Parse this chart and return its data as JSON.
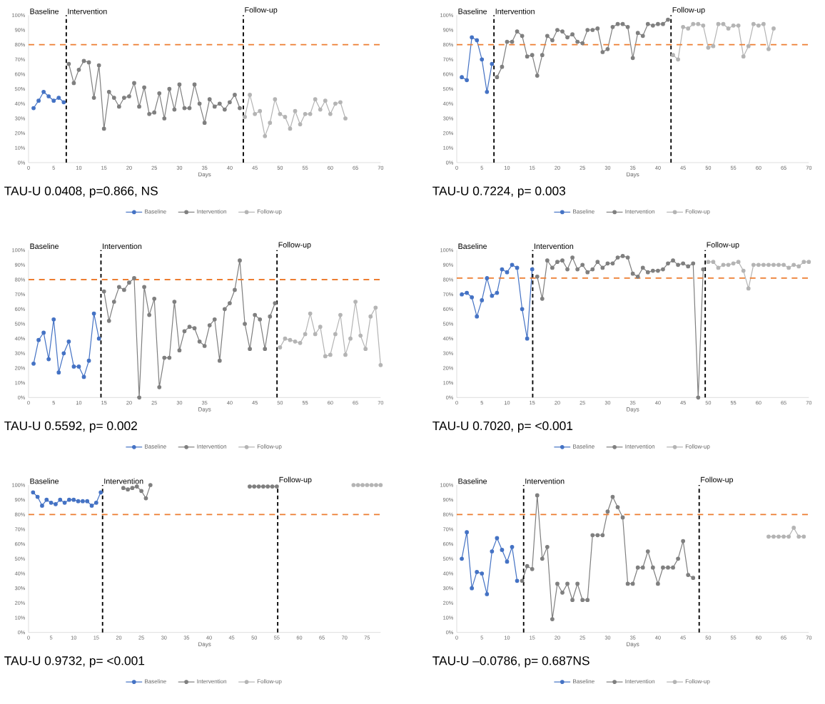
{
  "chart_data": [
    {
      "type": "line",
      "xlabel": "Days",
      "marker": "circle",
      "legend": "bottom",
      "annotations": [
        "Baseline",
        "Intervention",
        "Follow-up",
        "TAU-U 0.0408, p=0.866, NS"
      ],
      "xlim": [
        0,
        70
      ],
      "ylim": [
        0,
        100
      ],
      "xticks": [
        0,
        5,
        10,
        15,
        20,
        25,
        30,
        35,
        40,
        45,
        50,
        55,
        60,
        65,
        70
      ],
      "yticks": [
        {
          "value": 0,
          "label": "0%"
        },
        {
          "value": 10,
          "label": "10%"
        },
        {
          "value": 20,
          "label": "20%"
        },
        {
          "value": 30,
          "label": "30%"
        },
        {
          "value": 40,
          "label": "40%"
        },
        {
          "value": 50,
          "label": "50%"
        },
        {
          "value": 60,
          "label": "60%"
        },
        {
          "value": 70,
          "label": "70%"
        },
        {
          "value": 80,
          "label": "80%"
        },
        {
          "value": 90,
          "label": "90%"
        },
        {
          "value": 100,
          "label": "100%"
        }
      ],
      "ref_lines": [
        {
          "axis": "x",
          "value": 7.5,
          "color": "#000000",
          "line_style": "dashed"
        },
        {
          "axis": "x",
          "value": 42.7,
          "color": "#000000",
          "line_style": "dashed"
        },
        {
          "axis": "y",
          "value": 80,
          "color": "#ed7d31",
          "line_style": "dashed"
        }
      ],
      "series": [
        {
          "name": "Baseline",
          "color": "#4472c4",
          "x": [
            1,
            2,
            3,
            4,
            5,
            6,
            7
          ],
          "values": [
            37,
            42,
            48,
            45,
            42,
            44,
            41
          ]
        },
        {
          "name": "Intervention",
          "color": "#7f7f7f",
          "x": [
            8,
            9,
            10,
            11,
            12,
            13,
            14,
            15,
            16,
            17,
            18,
            19,
            20,
            21,
            22,
            23,
            24,
            25,
            26,
            27,
            28,
            29,
            30,
            31,
            32,
            33,
            34,
            35,
            36,
            37,
            38,
            39,
            40,
            41,
            42
          ],
          "values": [
            67,
            54,
            63,
            69,
            68,
            44,
            66,
            23,
            48,
            44,
            38,
            44,
            45,
            54,
            38,
            51,
            33,
            34,
            47,
            30,
            50,
            36,
            53,
            37,
            37,
            53,
            40,
            27,
            43,
            38,
            40,
            36,
            41,
            46,
            37
          ]
        },
        {
          "name": "Follow-up",
          "color": "#b4b4b4",
          "x": [
            43,
            44,
            45,
            46,
            47,
            48,
            49,
            50,
            51,
            52,
            53,
            54,
            55,
            56,
            57,
            58,
            59,
            60,
            61,
            62,
            63
          ],
          "values": [
            31,
            46,
            33,
            35,
            18,
            27,
            43,
            33,
            31,
            23,
            35,
            26,
            33,
            33,
            43,
            36,
            42,
            33,
            40,
            41,
            30
          ]
        }
      ]
    },
    {
      "type": "line",
      "xlabel": "Days",
      "marker": "circle",
      "legend": "bottom",
      "annotations": [
        "Baseline",
        "Intervention",
        "Follow-up",
        "TAU-U 0.7224, p= 0.003"
      ],
      "xlim": [
        0,
        70
      ],
      "ylim": [
        0,
        100
      ],
      "xticks": [
        0,
        5,
        10,
        15,
        20,
        25,
        30,
        35,
        40,
        45,
        50,
        55,
        60,
        65,
        70
      ],
      "yticks": [
        {
          "value": 0,
          "label": "0%"
        },
        {
          "value": 10,
          "label": "10%"
        },
        {
          "value": 20,
          "label": "20%"
        },
        {
          "value": 30,
          "label": "30%"
        },
        {
          "value": 40,
          "label": "40%"
        },
        {
          "value": 50,
          "label": "50%"
        },
        {
          "value": 60,
          "label": "60%"
        },
        {
          "value": 70,
          "label": "70%"
        },
        {
          "value": 80,
          "label": "80%"
        },
        {
          "value": 90,
          "label": "90%"
        },
        {
          "value": 100,
          "label": "100%"
        }
      ],
      "ref_lines": [
        {
          "axis": "x",
          "value": 7.4,
          "color": "#000000",
          "line_style": "dashed"
        },
        {
          "axis": "x",
          "value": 42.6,
          "color": "#000000",
          "line_style": "dashed"
        },
        {
          "axis": "y",
          "value": 80,
          "color": "#ed7d31",
          "line_style": "dashed"
        }
      ],
      "series": [
        {
          "name": "Baseline",
          "color": "#4472c4",
          "x": [
            1,
            2,
            3,
            4,
            5,
            6,
            7
          ],
          "values": [
            58,
            56,
            85,
            83,
            70,
            48,
            67
          ]
        },
        {
          "name": "Intervention",
          "color": "#7f7f7f",
          "x": [
            8,
            9,
            10,
            11,
            12,
            13,
            14,
            15,
            16,
            17,
            18,
            19,
            20,
            21,
            22,
            23,
            24,
            25,
            26,
            27,
            28,
            29,
            30,
            31,
            32,
            33,
            34,
            35,
            36,
            37,
            38,
            39,
            40,
            41,
            42
          ],
          "values": [
            58,
            65,
            82,
            82,
            89,
            86,
            72,
            73,
            59,
            73,
            86,
            83,
            90,
            89,
            85,
            87,
            82,
            81,
            90,
            90,
            91,
            75,
            77,
            92,
            94,
            94,
            92,
            71,
            88,
            86,
            94,
            93,
            94,
            94,
            97
          ]
        },
        {
          "name": "Follow-up",
          "color": "#b4b4b4",
          "x": [
            43,
            44,
            45,
            46,
            47,
            48,
            49,
            50,
            51,
            52,
            53,
            54,
            55,
            56,
            57,
            58,
            59,
            60,
            61,
            62,
            63
          ],
          "values": [
            73,
            70,
            92,
            91,
            94,
            94,
            93,
            78,
            79,
            94,
            94,
            91,
            93,
            93,
            72,
            79,
            94,
            93,
            94,
            77,
            91
          ]
        }
      ]
    },
    {
      "type": "line",
      "xlabel": "Days",
      "marker": "circle",
      "legend": "bottom",
      "annotations": [
        "Baseline",
        "Intervention",
        "Follow-up",
        "TAU-U 0.5592, p= 0.002"
      ],
      "xlim": [
        0,
        70
      ],
      "ylim": [
        0,
        100
      ],
      "xticks": [
        0,
        5,
        10,
        15,
        20,
        25,
        30,
        35,
        40,
        45,
        50,
        55,
        60,
        65,
        70
      ],
      "yticks": [
        {
          "value": 0,
          "label": "0%"
        },
        {
          "value": 10,
          "label": "10%"
        },
        {
          "value": 20,
          "label": "20%"
        },
        {
          "value": 30,
          "label": "30%"
        },
        {
          "value": 40,
          "label": "40%"
        },
        {
          "value": 50,
          "label": "50%"
        },
        {
          "value": 60,
          "label": "60%"
        },
        {
          "value": 70,
          "label": "70%"
        },
        {
          "value": 80,
          "label": "80%"
        },
        {
          "value": 90,
          "label": "90%"
        },
        {
          "value": 100,
          "label": "100%"
        }
      ],
      "ref_lines": [
        {
          "axis": "x",
          "value": 14.4,
          "color": "#000000",
          "line_style": "dashed"
        },
        {
          "axis": "x",
          "value": 49.4,
          "color": "#000000",
          "line_style": "dashed"
        },
        {
          "axis": "y",
          "value": 80,
          "color": "#ed7d31",
          "line_style": "dashed"
        }
      ],
      "series": [
        {
          "name": "Baseline",
          "color": "#4472c4",
          "x": [
            1,
            2,
            3,
            4,
            5,
            6,
            7,
            8,
            9,
            10,
            11,
            12,
            13,
            14
          ],
          "values": [
            23,
            39,
            44,
            26,
            53,
            17,
            30,
            38,
            21,
            21,
            14,
            25,
            57,
            40
          ]
        },
        {
          "name": "Intervention",
          "color": "#7f7f7f",
          "x": [
            15,
            16,
            17,
            18,
            19,
            20,
            21,
            22,
            23,
            24,
            25,
            26,
            27,
            28,
            29,
            30,
            31,
            32,
            33,
            34,
            35,
            36,
            37,
            38,
            39,
            40,
            41,
            42,
            43,
            44,
            45,
            46,
            47,
            48,
            49
          ],
          "values": [
            72,
            52,
            65,
            75,
            73,
            78,
            81,
            0,
            75,
            56,
            67,
            7,
            27,
            27,
            65,
            32,
            45,
            48,
            47,
            38,
            35,
            49,
            53,
            25,
            60,
            64,
            73,
            93,
            50,
            33,
            56,
            53,
            33,
            55,
            64
          ]
        },
        {
          "name": "Follow-up",
          "color": "#b4b4b4",
          "x": [
            50,
            51,
            52,
            53,
            54,
            55,
            56,
            57,
            58,
            59,
            60,
            61,
            62,
            63,
            64,
            65,
            66,
            67,
            68,
            69,
            70
          ],
          "values": [
            34,
            40,
            39,
            38,
            37,
            43,
            57,
            43,
            48,
            28,
            29,
            43,
            56,
            29,
            40,
            65,
            42,
            33,
            55,
            61,
            22
          ]
        }
      ]
    },
    {
      "type": "line",
      "xlabel": "Days",
      "marker": "circle",
      "legend": "bottom",
      "annotations": [
        "Baseline",
        "Intervention",
        "Follow-up",
        "TAU-U 0.7020, p= <0.001"
      ],
      "xlim": [
        0,
        70
      ],
      "ylim": [
        0,
        100
      ],
      "xticks": [
        0,
        5,
        10,
        15,
        20,
        25,
        30,
        35,
        40,
        45,
        50,
        55,
        60,
        65,
        70
      ],
      "yticks": [
        {
          "value": 0,
          "label": "0%"
        },
        {
          "value": 10,
          "label": "10%"
        },
        {
          "value": 20,
          "label": "20%"
        },
        {
          "value": 30,
          "label": "30%"
        },
        {
          "value": 40,
          "label": "40%"
        },
        {
          "value": 50,
          "label": "50%"
        },
        {
          "value": 60,
          "label": "60%"
        },
        {
          "value": 70,
          "label": "70%"
        },
        {
          "value": 80,
          "label": "80%"
        },
        {
          "value": 90,
          "label": "90%"
        },
        {
          "value": 100,
          "label": "100%"
        }
      ],
      "ref_lines": [
        {
          "axis": "x",
          "value": 15.1,
          "color": "#000000",
          "line_style": "dashed"
        },
        {
          "axis": "x",
          "value": 49.4,
          "color": "#000000",
          "line_style": "dashed"
        },
        {
          "axis": "y",
          "value": 81,
          "color": "#ed7d31",
          "line_style": "dashed"
        }
      ],
      "series": [
        {
          "name": "Baseline",
          "color": "#4472c4",
          "x": [
            1,
            2,
            3,
            4,
            5,
            6,
            7,
            8,
            9,
            10,
            11,
            12,
            13,
            14,
            15
          ],
          "values": [
            70,
            71,
            68,
            55,
            66,
            81,
            69,
            71,
            87,
            85,
            90,
            88,
            60,
            40,
            87
          ]
        },
        {
          "name": "Intervention",
          "color": "#7f7f7f",
          "x": [
            16,
            17,
            18,
            19,
            20,
            21,
            22,
            23,
            24,
            25,
            26,
            27,
            28,
            29,
            30,
            31,
            32,
            33,
            34,
            35,
            36,
            37,
            38,
            39,
            40,
            41,
            42,
            43,
            44,
            45,
            46,
            47,
            48,
            49
          ],
          "values": [
            82,
            67,
            93,
            88,
            92,
            93,
            87,
            95,
            87,
            90,
            85,
            87,
            92,
            88,
            91,
            91,
            95,
            96,
            95,
            84,
            82,
            88,
            85,
            86,
            86,
            87,
            91,
            93,
            90,
            91,
            89,
            91,
            0,
            87
          ]
        },
        {
          "name": "Follow-up",
          "color": "#b4b4b4",
          "x": [
            50,
            51,
            52,
            53,
            54,
            55,
            56,
            57,
            58,
            59,
            60,
            61,
            62,
            63,
            64,
            65,
            66,
            67,
            68,
            69,
            70
          ],
          "values": [
            92,
            92,
            88,
            90,
            90,
            91,
            92,
            86,
            74,
            90,
            90,
            90,
            90,
            90,
            90,
            90,
            88,
            90,
            89,
            92,
            92
          ]
        }
      ]
    },
    {
      "type": "line",
      "xlabel": "Days",
      "marker": "circle",
      "legend": "bottom",
      "annotations": [
        "Baseline",
        "Intervention",
        "Follow-up",
        "TAU-U 0.9732, p= <0.001"
      ],
      "xlim": [
        0,
        78
      ],
      "ylim": [
        0,
        100
      ],
      "xticks": [
        0,
        5,
        10,
        15,
        20,
        25,
        30,
        35,
        40,
        45,
        50,
        55,
        60,
        65,
        70,
        75
      ],
      "yticks": [
        {
          "value": 0,
          "label": "0%"
        },
        {
          "value": 10,
          "label": "10%"
        },
        {
          "value": 20,
          "label": "20%"
        },
        {
          "value": 30,
          "label": "30%"
        },
        {
          "value": 40,
          "label": "40%"
        },
        {
          "value": 50,
          "label": "50%"
        },
        {
          "value": 60,
          "label": "60%"
        },
        {
          "value": 70,
          "label": "70%"
        },
        {
          "value": 80,
          "label": "80%"
        },
        {
          "value": 90,
          "label": "90%"
        },
        {
          "value": 100,
          "label": "100%"
        }
      ],
      "ref_lines": [
        {
          "axis": "x",
          "value": 16.4,
          "color": "#000000",
          "line_style": "dashed"
        },
        {
          "axis": "x",
          "value": 55.2,
          "color": "#000000",
          "line_style": "dashed"
        },
        {
          "axis": "y",
          "value": 80,
          "color": "#ed7d31",
          "line_style": "dashed"
        }
      ],
      "series": [
        {
          "name": "Baseline",
          "color": "#4472c4",
          "x": [
            1,
            2,
            3,
            4,
            5,
            6,
            7,
            8,
            9,
            10,
            11,
            12,
            13,
            14,
            15,
            16
          ],
          "values": [
            95,
            92,
            86,
            90,
            88,
            87,
            90,
            88,
            90,
            90,
            89,
            89,
            89,
            86,
            88,
            95
          ]
        },
        {
          "name": "Intervention",
          "color": "#7f7f7f",
          "x": [
            21,
            22,
            23,
            24,
            25,
            26,
            27,
            28,
            29,
            30,
            31,
            32,
            33,
            34,
            35,
            36,
            37,
            38,
            39,
            40,
            41,
            42,
            43,
            44,
            45,
            46,
            47,
            48,
            49,
            50,
            51,
            52,
            53,
            54,
            55
          ],
          "values": [
            98,
            97,
            98,
            99,
            96,
            91,
            100,
            null,
            null,
            null,
            null,
            null,
            null,
            null,
            null,
            null,
            null,
            null,
            null,
            null,
            null,
            null,
            null,
            null,
            null,
            null,
            null,
            null,
            99,
            99,
            99,
            99,
            99,
            99,
            99
          ]
        },
        {
          "name": "Follow-up",
          "color": "#b4b4b4",
          "x": [
            72,
            73,
            74,
            75,
            76,
            77,
            78
          ],
          "values": [
            100,
            100,
            100,
            100,
            100,
            100,
            100
          ]
        }
      ]
    },
    {
      "type": "line",
      "xlabel": "Days",
      "marker": "circle",
      "legend": "bottom",
      "annotations": [
        "Baseline",
        "Intervention",
        "Follow-up",
        "TAU-U –0.0786, p= 0.687NS"
      ],
      "xlim": [
        0,
        70
      ],
      "ylim": [
        0,
        100
      ],
      "xticks": [
        0,
        5,
        10,
        15,
        20,
        25,
        30,
        35,
        40,
        45,
        50,
        55,
        60,
        65,
        70
      ],
      "yticks": [
        {
          "value": 0,
          "label": "0%"
        },
        {
          "value": 10,
          "label": "10%"
        },
        {
          "value": 20,
          "label": "20%"
        },
        {
          "value": 30,
          "label": "30%"
        },
        {
          "value": 40,
          "label": "40%"
        },
        {
          "value": 50,
          "label": "50%"
        },
        {
          "value": 60,
          "label": "60%"
        },
        {
          "value": 70,
          "label": "70%"
        },
        {
          "value": 80,
          "label": "80%"
        },
        {
          "value": 90,
          "label": "90%"
        },
        {
          "value": 100,
          "label": "100%"
        }
      ],
      "ref_lines": [
        {
          "axis": "x",
          "value": 13.3,
          "color": "#000000",
          "line_style": "dashed"
        },
        {
          "axis": "x",
          "value": 48.2,
          "color": "#000000",
          "line_style": "dashed"
        },
        {
          "axis": "y",
          "value": 80,
          "color": "#ed7d31",
          "line_style": "dashed"
        }
      ],
      "series": [
        {
          "name": "Baseline",
          "color": "#4472c4",
          "x": [
            1,
            2,
            3,
            4,
            5,
            6,
            7,
            8,
            9,
            10,
            11,
            12
          ],
          "values": [
            50,
            68,
            30,
            41,
            40,
            26,
            55,
            64,
            56,
            48,
            58,
            35
          ]
        },
        {
          "name": "Intervention",
          "color": "#7f7f7f",
          "x": [
            13,
            14,
            15,
            16,
            17,
            18,
            19,
            20,
            21,
            22,
            23,
            24,
            25,
            26,
            27,
            28,
            29,
            30,
            31,
            32,
            33,
            34,
            35,
            36,
            37,
            38,
            39,
            40,
            41,
            42,
            43,
            44,
            45,
            46,
            47
          ],
          "values": [
            35,
            45,
            43,
            93,
            50,
            58,
            9,
            33,
            27,
            33,
            22,
            33,
            22,
            22,
            66,
            66,
            66,
            82,
            92,
            85,
            78,
            33,
            33,
            44,
            44,
            55,
            44,
            33,
            44,
            44,
            44,
            50,
            62,
            39,
            37
          ]
        },
        {
          "name": "Follow-up",
          "color": "#b4b4b4",
          "x": [
            62,
            63,
            64,
            65,
            66,
            67,
            68,
            69
          ],
          "values": [
            65,
            65,
            65,
            65,
            65,
            71,
            65,
            65
          ]
        }
      ]
    }
  ]
}
